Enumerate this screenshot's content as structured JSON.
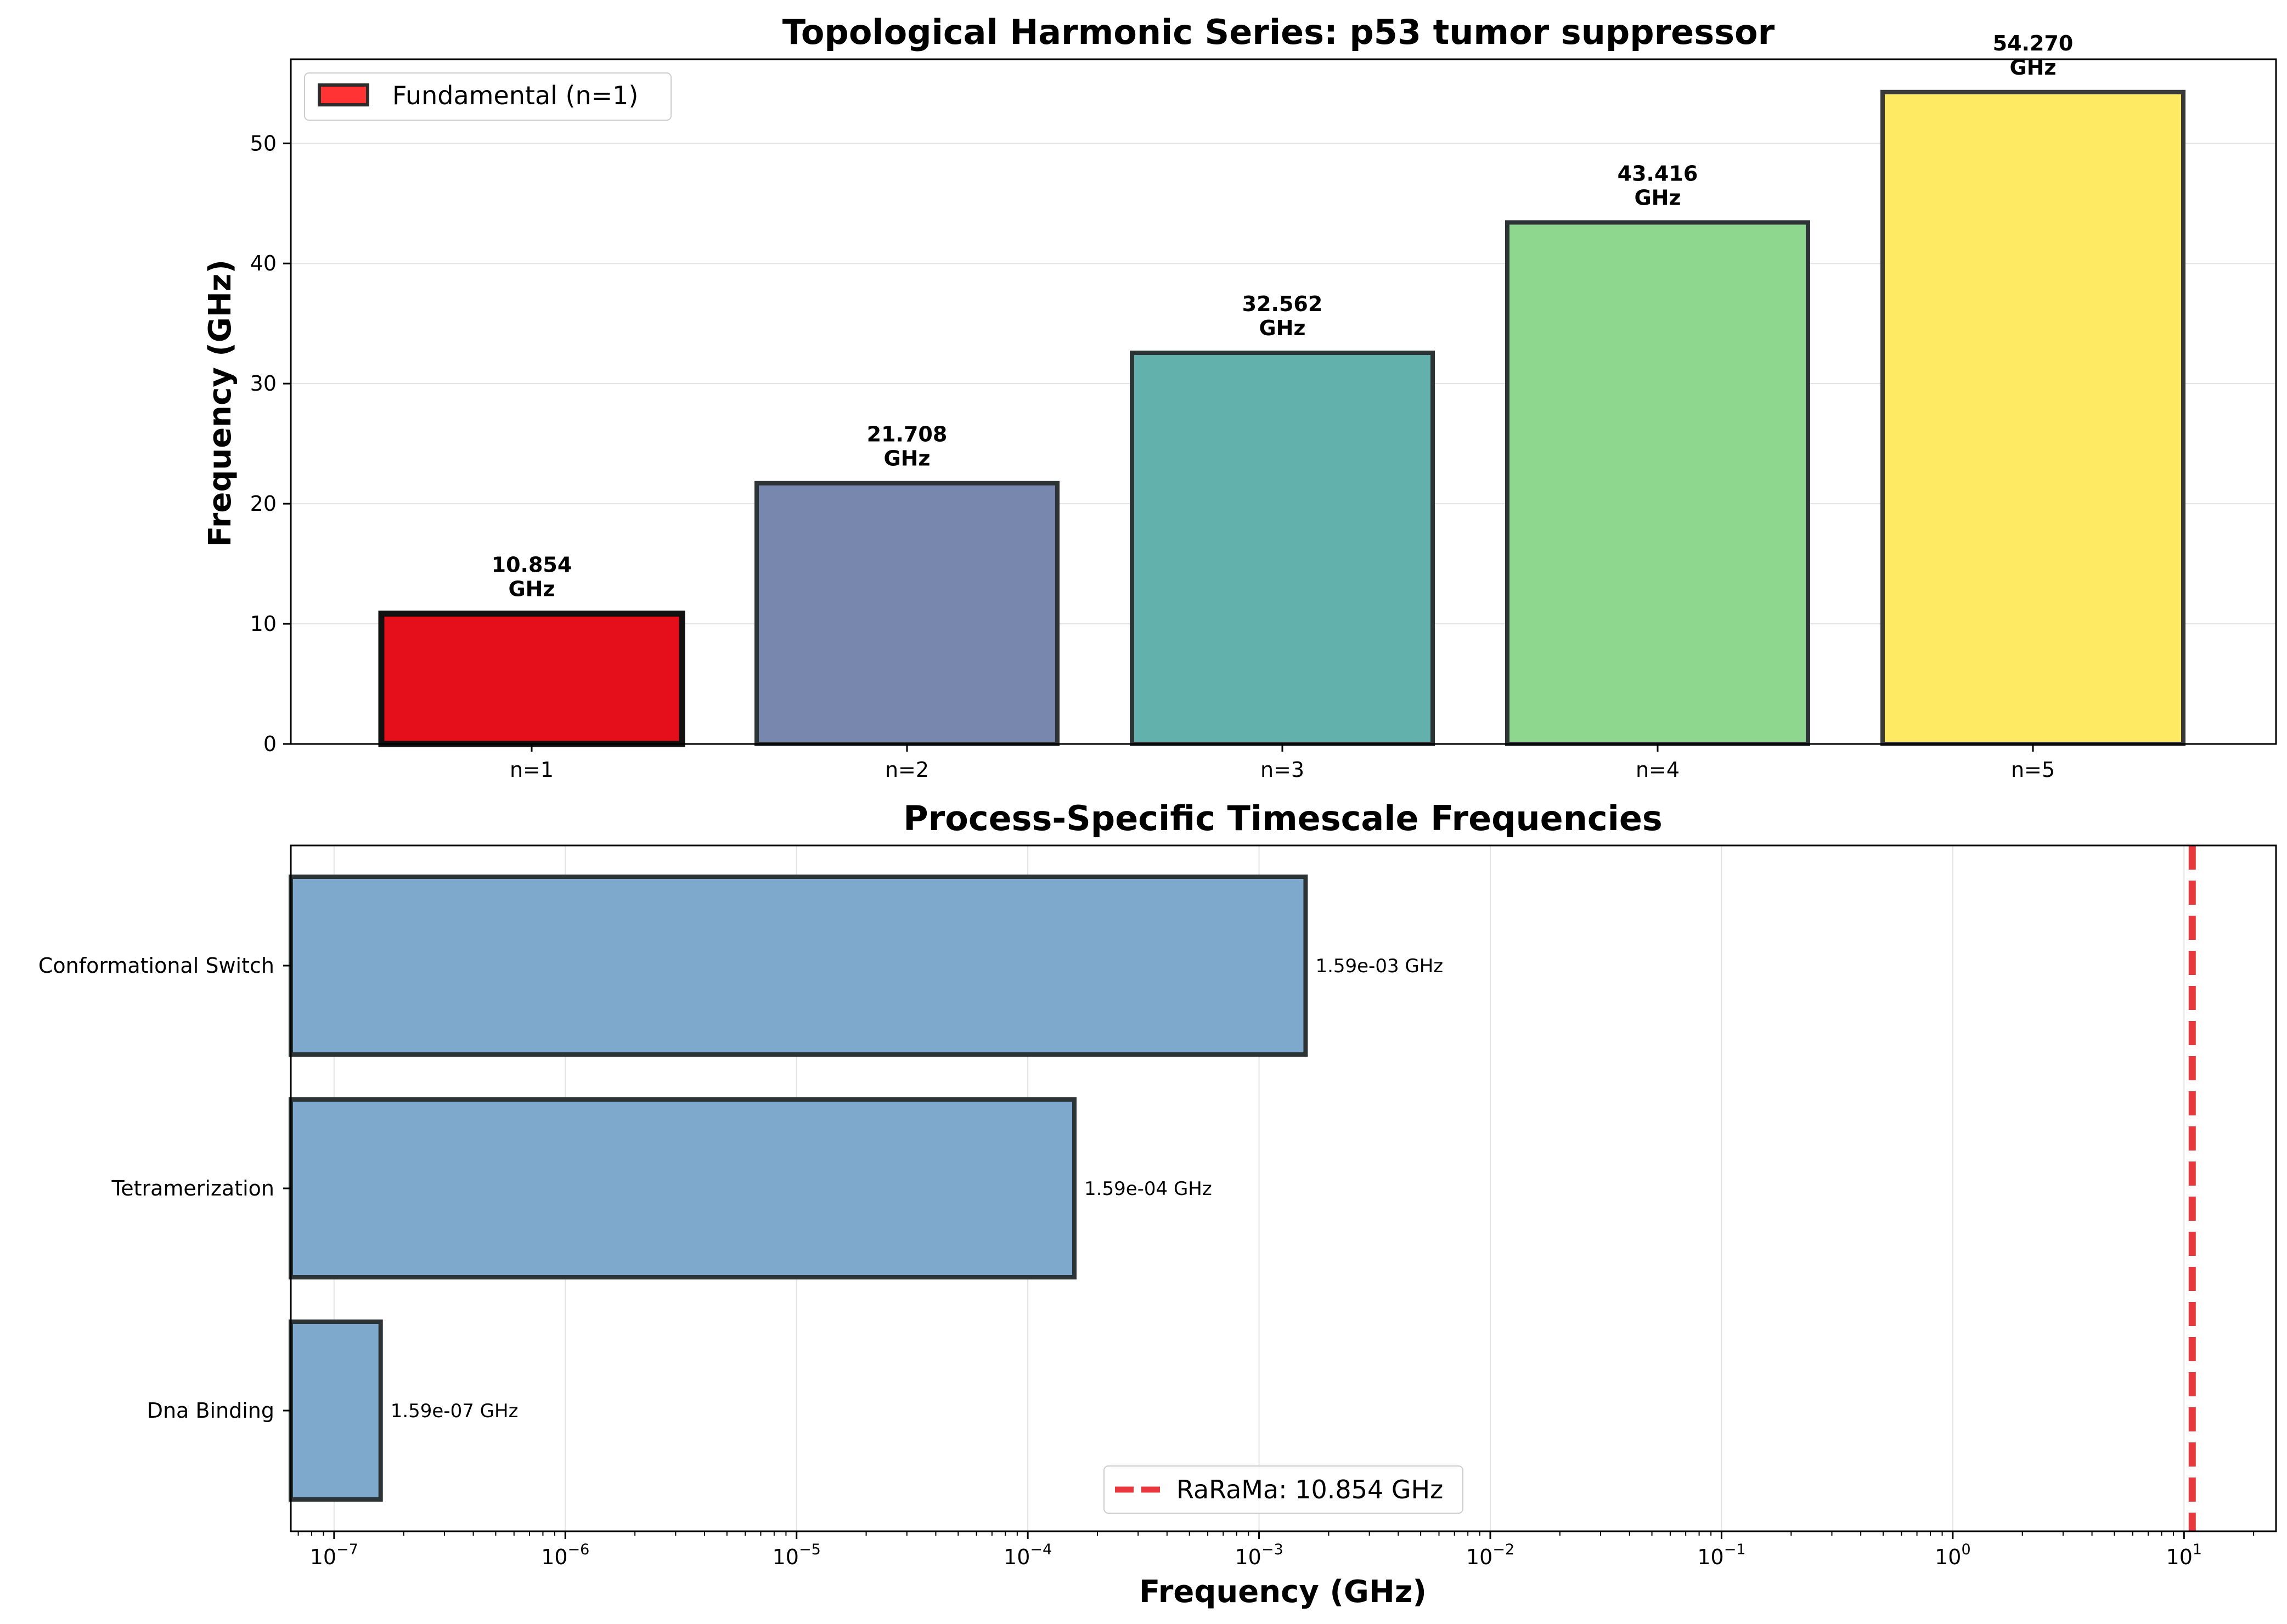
{
  "chart_data": [
    {
      "type": "bar",
      "title": "Topological Harmonic Series: p53 tumor suppressor",
      "xlabel": "",
      "ylabel": "Frequency (GHz)",
      "categories": [
        "n=1",
        "n=2",
        "n=3",
        "n=4",
        "n=5"
      ],
      "values": [
        10.854,
        21.708,
        32.562,
        43.416,
        54.27
      ],
      "value_labels": [
        "10.854",
        "21.708",
        "32.562",
        "43.416",
        "54.270"
      ],
      "value_unit": "GHz",
      "colors": [
        "#e50f1c",
        "#7787ad",
        "#63b1ac",
        "#8ed78e",
        "#ffeb63"
      ],
      "edge_colors": [
        "#111111",
        "#2d3436",
        "#2d3436",
        "#2d3436",
        "#3a3a3a"
      ],
      "ylim": [
        0,
        57
      ],
      "yticks": [
        0,
        10,
        20,
        30,
        40,
        50
      ],
      "grid": true,
      "legend": {
        "placement": "top-left",
        "entries": [
          {
            "label": "Fundamental (n=1)",
            "color": "#ff3333",
            "edge": "#2d2d2d"
          }
        ]
      }
    },
    {
      "type": "bar",
      "orientation": "horizontal",
      "title": "Process-Specific Timescale Frequencies",
      "xlabel": "Frequency (GHz)",
      "ylabel": "",
      "x_scale": "log",
      "xlim": [
        6.5e-08,
        25
      ],
      "categories": [
        "Conformational Switch",
        "Tetramerization",
        "Dna Binding"
      ],
      "values": [
        0.00159,
        0.000159,
        1.59e-07
      ],
      "value_labels": [
        "1.59e-03 GHz",
        "1.59e-04 GHz",
        "1.59e-07 GHz"
      ],
      "bar_color": "#7ea8cc",
      "edge_color": "#2d3436",
      "xtick_exponents": [
        "-7",
        "-6",
        "-5",
        "-4",
        "-3",
        "-2",
        "-1",
        "0",
        "1"
      ],
      "xtick_base": "10",
      "grid": true,
      "reference_line": {
        "value": 10.854,
        "label": "RaRaMa: 10.854 GHz",
        "color": "#e8383d",
        "style": "dashed"
      },
      "legend": {
        "placement": "bottom-center"
      }
    }
  ]
}
